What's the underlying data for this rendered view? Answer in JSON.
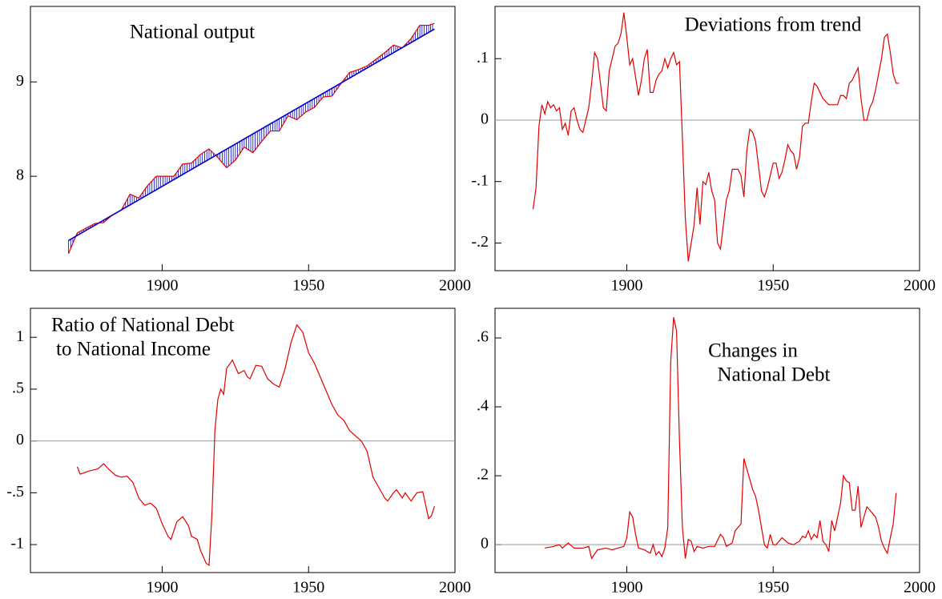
{
  "chart_data": [
    {
      "type": "line",
      "title": [
        "National output"
      ],
      "fill_between": true,
      "xlim": [
        1855,
        2000
      ],
      "xticks": [
        1900,
        1950,
        2000
      ],
      "ylim": [
        7,
        9.8
      ],
      "yticks": [
        8,
        9
      ],
      "series": [
        {
          "color": "#e00000",
          "x": [
            1868,
            1871,
            1874,
            1877,
            1880,
            1883,
            1886,
            1889,
            1892,
            1895,
            1898,
            1901,
            1904,
            1907,
            1910,
            1913,
            1916,
            1919,
            1922,
            1925,
            1928,
            1931,
            1934,
            1937,
            1940,
            1943,
            1946,
            1949,
            1952,
            1955,
            1958,
            1961,
            1964,
            1967,
            1970,
            1973,
            1976,
            1979,
            1982,
            1985,
            1988,
            1991,
            1993
          ],
          "values": [
            7.18,
            7.4,
            7.45,
            7.5,
            7.51,
            7.59,
            7.64,
            7.81,
            7.77,
            7.9,
            8.0,
            8.0,
            8.0,
            8.13,
            8.14,
            8.23,
            8.29,
            8.2,
            8.09,
            8.17,
            8.31,
            8.25,
            8.37,
            8.48,
            8.48,
            8.64,
            8.6,
            8.68,
            8.73,
            8.84,
            8.85,
            8.98,
            9.1,
            9.13,
            9.17,
            9.24,
            9.31,
            9.39,
            9.36,
            9.46,
            9.6,
            9.6,
            9.62
          ]
        },
        {
          "color": "#0000cc",
          "x": [
            1868,
            1993
          ],
          "values": [
            7.32,
            9.56
          ]
        }
      ]
    },
    {
      "type": "line",
      "title": [
        "Deviations from trend"
      ],
      "hline": 0,
      "xlim": [
        1855,
        2000
      ],
      "xticks": [
        1900,
        1950,
        2000
      ],
      "ylim": [
        -0.245,
        0.185
      ],
      "yticks": [
        {
          "value": -0.2,
          "label": "-.2"
        },
        {
          "value": -0.1,
          "label": "-.1"
        },
        0,
        {
          "value": 0.1,
          "label": ".1"
        }
      ],
      "series": [
        {
          "color": "#e00000",
          "x": [
            1868,
            1869,
            1870,
            1871,
            1872,
            1873,
            1874,
            1875,
            1876,
            1877,
            1878,
            1879,
            1880,
            1881,
            1882,
            1883,
            1884,
            1885,
            1886,
            1887,
            1888,
            1889,
            1890,
            1891,
            1892,
            1893,
            1894,
            1895,
            1896,
            1897,
            1898,
            1899,
            1900,
            1901,
            1902,
            1903,
            1904,
            1905,
            1906,
            1907,
            1908,
            1909,
            1910,
            1911,
            1912,
            1913,
            1914,
            1915,
            1916,
            1917,
            1918,
            1919,
            1920,
            1921,
            1922,
            1923,
            1924,
            1925,
            1926,
            1927,
            1928,
            1929,
            1930,
            1931,
            1932,
            1933,
            1934,
            1935,
            1936,
            1937,
            1938,
            1939,
            1940,
            1941,
            1942,
            1943,
            1944,
            1945,
            1946,
            1947,
            1948,
            1949,
            1950,
            1951,
            1952,
            1953,
            1954,
            1955,
            1956,
            1957,
            1958,
            1959,
            1960,
            1961,
            1962,
            1963,
            1964,
            1965,
            1966,
            1967,
            1968,
            1969,
            1970,
            1971,
            1972,
            1973,
            1974,
            1975,
            1976,
            1977,
            1978,
            1979,
            1980,
            1981,
            1982,
            1983,
            1984,
            1985,
            1986,
            1987,
            1988,
            1989,
            1990,
            1991,
            1992,
            1993
          ],
          "values": [
            -0.145,
            -0.11,
            -0.01,
            0.025,
            0.01,
            0.03,
            0.02,
            0.025,
            0.015,
            0.02,
            -0.015,
            -0.005,
            -0.025,
            0.015,
            0.02,
            0.0,
            -0.015,
            -0.02,
            0.0,
            0.02,
            0.06,
            0.11,
            0.1,
            0.06,
            0.02,
            0.015,
            0.08,
            0.1,
            0.12,
            0.125,
            0.14,
            0.175,
            0.135,
            0.09,
            0.1,
            0.07,
            0.04,
            0.065,
            0.1,
            0.115,
            0.045,
            0.045,
            0.065,
            0.075,
            0.08,
            0.1,
            0.085,
            0.1,
            0.11,
            0.09,
            0.095,
            -0.03,
            -0.16,
            -0.23,
            -0.2,
            -0.17,
            -0.11,
            -0.17,
            -0.1,
            -0.105,
            -0.085,
            -0.115,
            -0.13,
            -0.2,
            -0.21,
            -0.17,
            -0.13,
            -0.115,
            -0.08,
            -0.08,
            -0.08,
            -0.09,
            -0.125,
            -0.05,
            -0.015,
            -0.02,
            -0.035,
            -0.075,
            -0.115,
            -0.125,
            -0.11,
            -0.09,
            -0.07,
            -0.07,
            -0.095,
            -0.085,
            -0.065,
            -0.04,
            -0.05,
            -0.055,
            -0.08,
            -0.06,
            -0.01,
            -0.005,
            -0.005,
            0.03,
            0.06,
            0.055,
            0.045,
            0.035,
            0.03,
            0.025,
            0.025,
            0.025,
            0.025,
            0.04,
            0.04,
            0.035,
            0.06,
            0.065,
            0.075,
            0.085,
            0.035,
            0.0,
            0.0,
            0.02,
            0.03,
            0.05,
            0.075,
            0.1,
            0.135,
            0.14,
            0.11,
            0.075,
            0.06,
            0.06
          ]
        }
      ]
    },
    {
      "type": "line",
      "title": [
        "Ratio of National Debt",
        "to National Income"
      ],
      "hline": 0,
      "xlim": [
        1855,
        2000
      ],
      "xticks": [
        1900,
        1950,
        2000
      ],
      "ylim": [
        -1.27,
        1.28
      ],
      "yticks": [
        -1,
        {
          "value": -0.5,
          "label": "-.5"
        },
        0,
        {
          "value": 0.5,
          "label": ".5"
        },
        1
      ],
      "series": [
        {
          "color": "#e00000",
          "x": [
            1871,
            1872,
            1875,
            1878,
            1880,
            1882,
            1884,
            1886,
            1888,
            1890,
            1892,
            1894,
            1896,
            1898,
            1900,
            1902,
            1903,
            1905,
            1907,
            1909,
            1910,
            1912,
            1913,
            1915,
            1916,
            1917,
            1918,
            1919,
            1920,
            1921,
            1922,
            1924,
            1926,
            1928,
            1929,
            1930,
            1932,
            1934,
            1936,
            1938,
            1940,
            1942,
            1944,
            1946,
            1948,
            1950,
            1952,
            1955,
            1958,
            1960,
            1962,
            1964,
            1966,
            1968,
            1970,
            1972,
            1974,
            1976,
            1977,
            1979,
            1980,
            1982,
            1983,
            1985,
            1987,
            1989,
            1991,
            1992,
            1993
          ],
          "values": [
            -0.25,
            -0.32,
            -0.29,
            -0.27,
            -0.22,
            -0.28,
            -0.33,
            -0.35,
            -0.34,
            -0.4,
            -0.55,
            -0.62,
            -0.6,
            -0.65,
            -0.8,
            -0.92,
            -0.95,
            -0.78,
            -0.73,
            -0.82,
            -0.92,
            -0.95,
            -1.05,
            -1.18,
            -1.2,
            -0.7,
            0.1,
            0.4,
            0.5,
            0.45,
            0.7,
            0.78,
            0.65,
            0.68,
            0.62,
            0.6,
            0.73,
            0.72,
            0.6,
            0.55,
            0.52,
            0.7,
            0.95,
            1.12,
            1.05,
            0.85,
            0.75,
            0.55,
            0.35,
            0.25,
            0.2,
            0.1,
            0.05,
            0.0,
            -0.1,
            -0.35,
            -0.45,
            -0.55,
            -0.58,
            -0.5,
            -0.47,
            -0.55,
            -0.5,
            -0.58,
            -0.5,
            -0.49,
            -0.75,
            -0.72,
            -0.63
          ]
        }
      ]
    },
    {
      "type": "line",
      "title": [
        "Changes in",
        "National Debt"
      ],
      "hline": 0,
      "xlim": [
        1855,
        2000
      ],
      "xticks": [
        1900,
        1950,
        2000
      ],
      "ylim": [
        -0.081,
        0.686
      ],
      "yticks": [
        0,
        {
          "value": 0.2,
          "label": ".2"
        },
        {
          "value": 0.4,
          "label": ".4"
        },
        {
          "value": 0.6,
          "label": ".6"
        }
      ],
      "series": [
        {
          "color": "#e00000",
          "x": [
            1872,
            1875,
            1877,
            1878,
            1880,
            1882,
            1885,
            1887,
            1888,
            1890,
            1893,
            1895,
            1897,
            1899,
            1900,
            1901,
            1902,
            1903,
            1904,
            1906,
            1908,
            1909,
            1910,
            1911,
            1912,
            1913,
            1914,
            1915,
            1916,
            1917,
            1918,
            1919,
            1920,
            1921,
            1922,
            1923,
            1924,
            1926,
            1928,
            1930,
            1932,
            1933,
            1934,
            1936,
            1937,
            1938,
            1939,
            1940,
            1941,
            1942,
            1943,
            1944,
            1945,
            1946,
            1947,
            1948,
            1949,
            1950,
            1951,
            1953,
            1955,
            1957,
            1959,
            1960,
            1961,
            1962,
            1963,
            1964,
            1965,
            1966,
            1967,
            1968,
            1969,
            1970,
            1971,
            1972,
            1973,
            1974,
            1975,
            1976,
            1977,
            1978,
            1979,
            1980,
            1981,
            1982,
            1983,
            1984,
            1985,
            1986,
            1987,
            1988,
            1989,
            1990,
            1991,
            1992
          ],
          "values": [
            -0.01,
            -0.005,
            0.0,
            -0.01,
            0.005,
            -0.01,
            -0.01,
            -0.005,
            -0.04,
            -0.015,
            -0.01,
            -0.015,
            -0.01,
            -0.005,
            0.02,
            0.095,
            0.08,
            0.03,
            -0.01,
            -0.015,
            -0.025,
            0.0,
            -0.03,
            -0.02,
            -0.035,
            -0.01,
            0.05,
            0.53,
            0.66,
            0.62,
            0.3,
            0.05,
            -0.04,
            0.015,
            0.01,
            -0.02,
            -0.005,
            -0.01,
            -0.005,
            -0.005,
            0.03,
            0.02,
            -0.005,
            0.005,
            0.04,
            0.05,
            0.06,
            0.25,
            0.22,
            0.19,
            0.16,
            0.14,
            0.1,
            0.05,
            0.0,
            -0.01,
            0.03,
            0.0,
            0.0,
            0.02,
            0.005,
            0.0,
            0.01,
            0.025,
            0.02,
            0.04,
            0.015,
            0.03,
            0.02,
            0.07,
            0.01,
            0.0,
            -0.02,
            0.07,
            0.04,
            0.08,
            0.12,
            0.2,
            0.185,
            0.18,
            0.1,
            0.1,
            0.17,
            0.05,
            0.08,
            0.11,
            0.1,
            0.09,
            0.08,
            0.05,
            0.01,
            -0.01,
            -0.025,
            0.02,
            0.06,
            0.15
          ]
        }
      ]
    }
  ]
}
